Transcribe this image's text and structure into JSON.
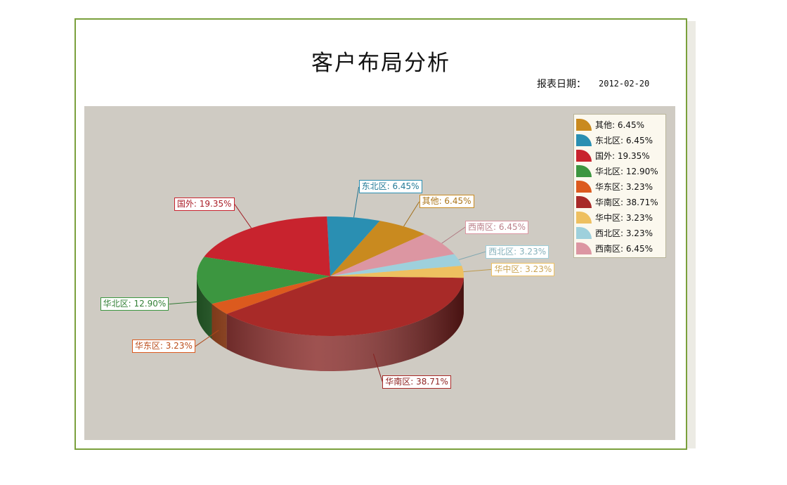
{
  "report": {
    "title": "客户布局分析",
    "date_label": "报表日期：",
    "date_value": "2012-02-20"
  },
  "chart_data": {
    "type": "pie",
    "categories": [
      "其他",
      "东北区",
      "国外",
      "华北区",
      "华东区",
      "华南区",
      "华中区",
      "西北区",
      "西南区"
    ],
    "values": [
      6.45,
      6.45,
      19.35,
      12.9,
      3.23,
      38.71,
      3.23,
      3.23,
      6.45
    ],
    "unit": "%",
    "data_labels": [
      "其他: 6.45%",
      "东北区: 6.45%",
      "国外: 19.35%",
      "华北区: 12.90%",
      "华东区: 3.23%",
      "华南区: 38.71%",
      "华中区: 3.23%",
      "西北区: 3.23%",
      "西南区: 6.45%"
    ],
    "colors": [
      "#c98a1f",
      "#2a8fb2",
      "#c8232e",
      "#3c9640",
      "#dc5a1e",
      "#a82a28",
      "#eec060",
      "#9ed0dc",
      "#dc96a2"
    ],
    "legend": {
      "placement": "top-right",
      "entries": [
        "其他: 6.45%",
        "东北区: 6.45%",
        "国外: 19.35%",
        "华北区: 12.90%",
        "华东区: 3.23%",
        "华南区: 38.71%",
        "华中区: 3.23%",
        "西北区: 3.23%",
        "西南区: 6.45%"
      ]
    },
    "style": "3d-pie"
  }
}
